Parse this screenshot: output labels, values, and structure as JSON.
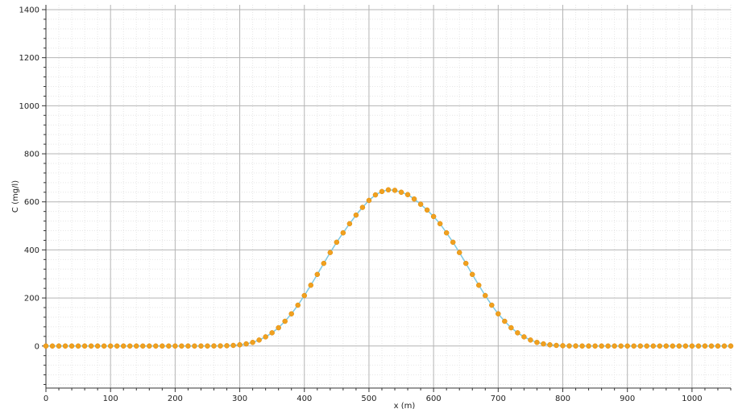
{
  "chart_data": {
    "type": "line",
    "xlabel": "x (m)",
    "ylabel": "C (mg/l)",
    "xlim": [
      0,
      1060
    ],
    "ylim": [
      -175,
      1420
    ],
    "x_ticks": [
      0,
      100,
      200,
      300,
      400,
      500,
      600,
      700,
      800,
      900,
      1000
    ],
    "y_ticks": [
      0,
      200,
      400,
      600,
      800,
      1000,
      1200,
      1400
    ],
    "grid": true,
    "legend": "none",
    "colors": {
      "line": "#7ec8e3",
      "marker": "#f0a020"
    },
    "series": [
      {
        "x": [
          0,
          10,
          20,
          30,
          40,
          50,
          60,
          70,
          80,
          90,
          100,
          110,
          120,
          130,
          140,
          150,
          160,
          170,
          180,
          190,
          200,
          210,
          220,
          230,
          240,
          250,
          260,
          270,
          280,
          290,
          300,
          310,
          320,
          330,
          340,
          350,
          360,
          370,
          380,
          390,
          400,
          410,
          420,
          430,
          440,
          450,
          460,
          470,
          480,
          490,
          500,
          510,
          520,
          530,
          540,
          550,
          560,
          570,
          580,
          590,
          600,
          610,
          620,
          630,
          640,
          650,
          660,
          670,
          680,
          690,
          700,
          710,
          720,
          730,
          740,
          750,
          760,
          770,
          780,
          790,
          800,
          810,
          820,
          830,
          840,
          850,
          860,
          870,
          880,
          890,
          900,
          910,
          920,
          930,
          940,
          950,
          960,
          970,
          980,
          990,
          1000,
          1010,
          1020,
          1030,
          1040,
          1050,
          1060
        ],
        "values": [
          0,
          0,
          0,
          0,
          0,
          0,
          0,
          0,
          0,
          0,
          0,
          0,
          0,
          0,
          0,
          0,
          0,
          0,
          0,
          0,
          0,
          0,
          0,
          0,
          0,
          0.1,
          0.3,
          0.6,
          1.3,
          2.6,
          5,
          9,
          15,
          25,
          38,
          55,
          76,
          103,
          134,
          170,
          210,
          253,
          298,
          344,
          389,
          432,
          471,
          509,
          545,
          577,
          606,
          629,
          643,
          650,
          648,
          640,
          630,
          612,
          590,
          566,
          539,
          509,
          471,
          432,
          389,
          344,
          298,
          253,
          210,
          170,
          134,
          103,
          76,
          55,
          38,
          25,
          15,
          9,
          5,
          2.6,
          1.3,
          0.6,
          0.3,
          0.1,
          0,
          0,
          0,
          0,
          0,
          0,
          0,
          0,
          0,
          0,
          0,
          0,
          0,
          0,
          0,
          0,
          0,
          0,
          0,
          0,
          0,
          0,
          0
        ]
      }
    ]
  }
}
